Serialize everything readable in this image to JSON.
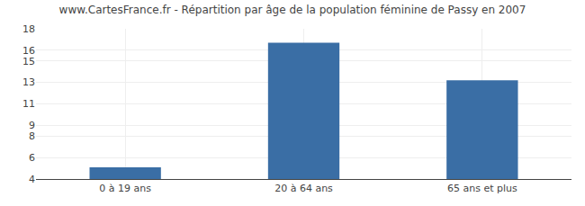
{
  "chart_data": {
    "type": "bar",
    "title": "www.CartesFrance.fr - Répartition par âge de la population féminine de Passy en 2007",
    "categories": [
      "0 à 19 ans",
      "20 à 64 ans",
      "65 ans et plus"
    ],
    "values": [
      5.1,
      16.7,
      13.2
    ],
    "color": "#3a6ea5",
    "ylim": [
      4,
      18
    ],
    "yticks": [
      4,
      6,
      8,
      9,
      11,
      13,
      15,
      16,
      18
    ],
    "grid": true
  }
}
